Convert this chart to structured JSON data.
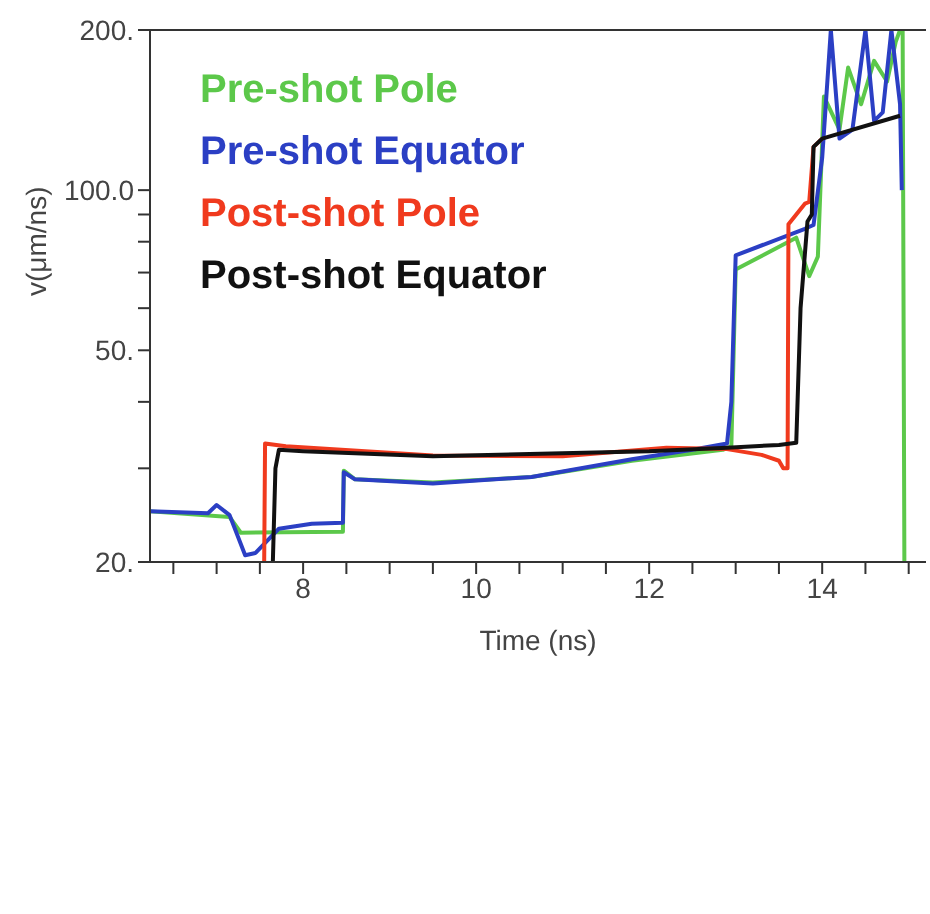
{
  "chart_data": {
    "type": "line",
    "xlabel": "Time (ns)",
    "ylabel": "v(μm/ns)",
    "log": "y",
    "xlim": [
      6.23,
      15.2
    ],
    "ylim": [
      20,
      200
    ],
    "xticks": [
      {
        "value": 6.5,
        "label": null
      },
      {
        "value": 7,
        "label": null
      },
      {
        "value": 7.5,
        "label": null
      },
      8,
      {
        "value": 8.5,
        "label": null
      },
      {
        "value": 9,
        "label": null
      },
      {
        "value": 9.5,
        "label": null
      },
      10,
      {
        "value": 10.5,
        "label": null
      },
      {
        "value": 11,
        "label": null
      },
      {
        "value": 11.5,
        "label": null
      },
      12,
      {
        "value": 12.5,
        "label": null
      },
      {
        "value": 13,
        "label": null
      },
      {
        "value": 13.5,
        "label": null
      },
      14,
      {
        "value": 14.5,
        "label": null
      },
      {
        "value": 15,
        "label": null
      }
    ],
    "yticks": [
      {
        "value": 20,
        "label": "20."
      },
      {
        "value": 30,
        "label": null
      },
      {
        "value": 40,
        "label": null
      },
      {
        "value": 50,
        "label": "50."
      },
      {
        "value": 60,
        "label": null
      },
      {
        "value": 70,
        "label": null
      },
      {
        "value": 80,
        "label": null
      },
      {
        "value": 90,
        "label": null
      },
      {
        "value": 100,
        "label": "100.0"
      },
      {
        "value": 200,
        "label": "200."
      }
    ],
    "grid": false,
    "legend": "top left",
    "marker": "none",
    "line_style": "solid",
    "series": [
      {
        "name": "Pre-shot Pole",
        "color": "#5cc84a",
        "x": [
          6.23,
          7.15,
          7.28,
          8.46,
          8.47,
          8.6,
          9.5,
          10.64,
          11.8,
          12.85,
          12.95,
          13.0,
          13.7,
          13.85,
          13.95,
          14.02,
          14.2,
          14.3,
          14.45,
          14.6,
          14.75,
          14.85,
          14.9,
          14.93,
          14.95
        ],
        "values": [
          24.9,
          24.3,
          22.7,
          22.8,
          29.7,
          28.6,
          28.2,
          28.9,
          31.0,
          32.5,
          33,
          70.9,
          81.4,
          68.9,
          75,
          150,
          130,
          170,
          145,
          175,
          160,
          190,
          200,
          200,
          20
        ]
      },
      {
        "name": "Pre-shot Equator",
        "color": "#2b3fc4",
        "x": [
          6.23,
          6.9,
          7.0,
          7.15,
          7.33,
          7.45,
          7.72,
          8.1,
          8.46,
          8.47,
          8.6,
          9.5,
          10.64,
          11.8,
          12.5,
          12.9,
          12.95,
          13.0,
          13.8,
          13.9,
          14.0,
          14.1,
          14.2,
          14.35,
          14.5,
          14.6,
          14.7,
          14.8,
          14.9,
          14.92
        ],
        "values": [
          24.9,
          24.7,
          25.6,
          24.5,
          20.6,
          20.8,
          23.1,
          23.6,
          23.7,
          29.5,
          28.6,
          28.1,
          28.9,
          31.2,
          32.5,
          33.4,
          40,
          75.4,
          84.6,
          86,
          115,
          200,
          125,
          130,
          200,
          135,
          140,
          200,
          145,
          100
        ]
      },
      {
        "name": "Post-shot Pole",
        "color": "#f03a1e",
        "x": [
          7.55,
          7.56,
          7.8,
          9.5,
          11,
          12.2,
          12.9,
          13.3,
          13.5,
          13.55,
          13.6,
          13.61,
          13.8,
          13.85,
          13.9,
          14.0
        ],
        "values": [
          20,
          33.4,
          33.0,
          31.7,
          31.6,
          32.8,
          32.6,
          31.8,
          31.0,
          30.0,
          30.0,
          86.3,
          94.3,
          95,
          120.6,
          125
        ]
      },
      {
        "name": "Post-shot Equator",
        "color": "#111111",
        "x": [
          7.65,
          7.68,
          7.72,
          8.0,
          9.5,
          12,
          12.9,
          13.5,
          13.7,
          13.75,
          13.83,
          13.88,
          13.9,
          14.0,
          14.9
        ],
        "values": [
          20,
          30,
          32.5,
          32.3,
          31.6,
          32.3,
          32.8,
          33.2,
          33.5,
          60,
          87.3,
          90,
          120.6,
          125,
          138
        ]
      }
    ]
  }
}
